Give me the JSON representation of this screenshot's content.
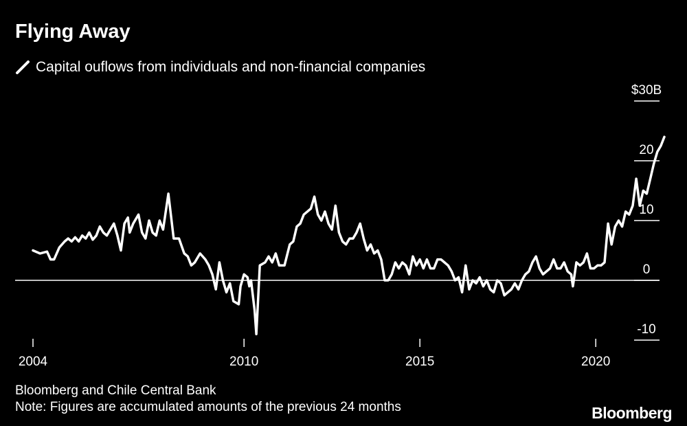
{
  "colors": {
    "background": "#000000",
    "line": "#ffffff",
    "text": "#ffffff"
  },
  "title": "Flying Away",
  "legend": {
    "icon": "slash-line-icon",
    "label": "Capital ouflows from individuals and non-financial companies"
  },
  "source": "Bloomberg and Chile Central Bank",
  "note": "Note: Figures are accumulated amounts of the previous 24 months",
  "brand": "Bloomberg",
  "chart_data": {
    "type": "line",
    "title": "Flying Away",
    "xlabel": "",
    "ylabel": "",
    "unit_label": "$30B",
    "xlim": [
      2004,
      2022.5
    ],
    "ylim": [
      -10,
      30
    ],
    "x_ticks": [
      2004,
      2010,
      2015,
      2020
    ],
    "x_tick_labels": [
      "2004",
      "2010",
      "2015",
      "2020"
    ],
    "y_ticks": [
      30,
      20,
      10,
      0,
      -10
    ],
    "y_tick_labels": [
      "$30B",
      "20",
      "10",
      "0",
      "-10"
    ],
    "zero_line": true,
    "series": [
      {
        "name": "Capital ouflows from individuals and non-financial companies",
        "points": [
          [
            2004.0,
            5.0
          ],
          [
            2004.2,
            4.5
          ],
          [
            2004.4,
            4.8
          ],
          [
            2004.5,
            3.5
          ],
          [
            2004.6,
            3.5
          ],
          [
            2004.75,
            5.5
          ],
          [
            2004.9,
            6.5
          ],
          [
            2005.0,
            7.0
          ],
          [
            2005.1,
            6.5
          ],
          [
            2005.2,
            7.2
          ],
          [
            2005.3,
            6.5
          ],
          [
            2005.4,
            7.5
          ],
          [
            2005.5,
            7.0
          ],
          [
            2005.6,
            8.0
          ],
          [
            2005.7,
            6.8
          ],
          [
            2005.8,
            7.5
          ],
          [
            2005.9,
            9.0
          ],
          [
            2006.0,
            8.0
          ],
          [
            2006.1,
            7.5
          ],
          [
            2006.2,
            8.5
          ],
          [
            2006.3,
            9.5
          ],
          [
            2006.4,
            7.5
          ],
          [
            2006.5,
            5.0
          ],
          [
            2006.6,
            9.5
          ],
          [
            2006.7,
            10.5
          ],
          [
            2006.75,
            8.0
          ],
          [
            2006.85,
            9.5
          ],
          [
            2007.0,
            11.0
          ],
          [
            2007.1,
            8.0
          ],
          [
            2007.2,
            7.0
          ],
          [
            2007.3,
            10.0
          ],
          [
            2007.4,
            8.0
          ],
          [
            2007.5,
            7.5
          ],
          [
            2007.6,
            10.0
          ],
          [
            2007.7,
            8.5
          ],
          [
            2007.85,
            14.5
          ],
          [
            2008.0,
            7.0
          ],
          [
            2008.15,
            7.0
          ],
          [
            2008.3,
            4.5
          ],
          [
            2008.4,
            4.0
          ],
          [
            2008.5,
            2.5
          ],
          [
            2008.6,
            3.0
          ],
          [
            2008.75,
            4.5
          ],
          [
            2008.9,
            3.5
          ],
          [
            2009.0,
            2.5
          ],
          [
            2009.1,
            1.0
          ],
          [
            2009.2,
            -1.5
          ],
          [
            2009.3,
            3.0
          ],
          [
            2009.4,
            0.0
          ],
          [
            2009.5,
            -2.0
          ],
          [
            2009.6,
            -0.5
          ],
          [
            2009.7,
            -3.5
          ],
          [
            2009.85,
            -4.0
          ],
          [
            2009.9,
            -1.0
          ],
          [
            2010.0,
            1.0
          ],
          [
            2010.1,
            0.5
          ],
          [
            2010.15,
            -1.0
          ],
          [
            2010.2,
            0.0
          ],
          [
            2010.3,
            -5.0
          ],
          [
            2010.35,
            -9.0
          ],
          [
            2010.45,
            2.5
          ],
          [
            2010.6,
            3.0
          ],
          [
            2010.7,
            4.0
          ],
          [
            2010.8,
            3.0
          ],
          [
            2010.9,
            4.5
          ],
          [
            2011.0,
            2.5
          ],
          [
            2011.15,
            2.5
          ],
          [
            2011.3,
            6.0
          ],
          [
            2011.4,
            6.5
          ],
          [
            2011.5,
            9.0
          ],
          [
            2011.6,
            9.5
          ],
          [
            2011.7,
            11.0
          ],
          [
            2011.8,
            11.5
          ],
          [
            2011.9,
            12.0
          ],
          [
            2012.0,
            14.0
          ],
          [
            2012.1,
            11.0
          ],
          [
            2012.2,
            10.0
          ],
          [
            2012.3,
            11.5
          ],
          [
            2012.4,
            9.5
          ],
          [
            2012.5,
            8.5
          ],
          [
            2012.6,
            12.5
          ],
          [
            2012.7,
            8.0
          ],
          [
            2012.8,
            6.5
          ],
          [
            2012.9,
            6.0
          ],
          [
            2013.0,
            7.0
          ],
          [
            2013.1,
            7.0
          ],
          [
            2013.2,
            8.0
          ],
          [
            2013.3,
            9.5
          ],
          [
            2013.4,
            7.0
          ],
          [
            2013.5,
            5.0
          ],
          [
            2013.6,
            6.0
          ],
          [
            2013.7,
            4.5
          ],
          [
            2013.8,
            5.0
          ],
          [
            2013.9,
            3.5
          ],
          [
            2014.0,
            0.0
          ],
          [
            2014.1,
            0.0
          ],
          [
            2014.2,
            1.0
          ],
          [
            2014.3,
            3.0
          ],
          [
            2014.4,
            2.0
          ],
          [
            2014.5,
            3.0
          ],
          [
            2014.6,
            2.5
          ],
          [
            2014.7,
            1.0
          ],
          [
            2014.8,
            4.0
          ],
          [
            2014.9,
            2.5
          ],
          [
            2015.0,
            3.5
          ],
          [
            2015.1,
            2.0
          ],
          [
            2015.2,
            3.5
          ],
          [
            2015.3,
            2.0
          ],
          [
            2015.4,
            2.0
          ],
          [
            2015.5,
            3.5
          ],
          [
            2015.6,
            3.5
          ],
          [
            2015.7,
            3.0
          ],
          [
            2015.8,
            2.5
          ],
          [
            2015.9,
            1.5
          ],
          [
            2016.0,
            0.0
          ],
          [
            2016.1,
            0.5
          ],
          [
            2016.2,
            -2.0
          ],
          [
            2016.3,
            2.5
          ],
          [
            2016.4,
            -1.5
          ],
          [
            2016.5,
            0.0
          ],
          [
            2016.6,
            -0.5
          ],
          [
            2016.7,
            0.5
          ],
          [
            2016.8,
            -1.0
          ],
          [
            2016.9,
            0.0
          ],
          [
            2017.0,
            -1.5
          ],
          [
            2017.1,
            -2.0
          ],
          [
            2017.2,
            0.0
          ],
          [
            2017.3,
            -0.5
          ],
          [
            2017.4,
            -2.5
          ],
          [
            2017.5,
            -2.0
          ],
          [
            2017.6,
            -1.5
          ],
          [
            2017.7,
            -0.5
          ],
          [
            2017.8,
            -1.5
          ],
          [
            2017.9,
            0.0
          ],
          [
            2018.0,
            1.0
          ],
          [
            2018.1,
            1.5
          ],
          [
            2018.2,
            3.0
          ],
          [
            2018.3,
            4.0
          ],
          [
            2018.4,
            2.0
          ],
          [
            2018.5,
            1.0
          ],
          [
            2018.6,
            1.5
          ],
          [
            2018.7,
            2.0
          ],
          [
            2018.8,
            3.5
          ],
          [
            2018.9,
            2.0
          ],
          [
            2019.0,
            2.0
          ],
          [
            2019.1,
            3.0
          ],
          [
            2019.2,
            1.5
          ],
          [
            2019.3,
            1.0
          ],
          [
            2019.35,
            -1.0
          ],
          [
            2019.45,
            3.0
          ],
          [
            2019.55,
            2.5
          ],
          [
            2019.65,
            3.0
          ],
          [
            2019.75,
            4.5
          ],
          [
            2019.85,
            2.0
          ],
          [
            2019.95,
            2.0
          ],
          [
            2020.05,
            2.5
          ],
          [
            2020.15,
            2.5
          ],
          [
            2020.25,
            3.0
          ],
          [
            2020.35,
            9.5
          ],
          [
            2020.45,
            6.0
          ],
          [
            2020.55,
            9.0
          ],
          [
            2020.65,
            10.0
          ],
          [
            2020.75,
            9.0
          ],
          [
            2020.85,
            11.5
          ],
          [
            2020.95,
            11.0
          ],
          [
            2021.05,
            12.5
          ],
          [
            2021.15,
            17.0
          ],
          [
            2021.25,
            12.5
          ],
          [
            2021.35,
            15.0
          ],
          [
            2021.45,
            14.5
          ],
          [
            2021.55,
            17.0
          ],
          [
            2021.65,
            19.5
          ],
          [
            2021.75,
            21.5
          ],
          [
            2021.85,
            22.5
          ],
          [
            2021.95,
            24.0
          ]
        ]
      }
    ]
  }
}
